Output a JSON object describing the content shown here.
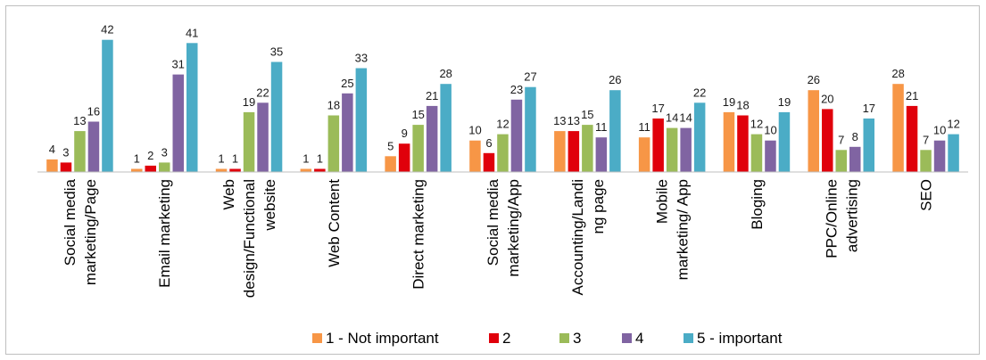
{
  "chart_data": {
    "type": "bar",
    "categories": [
      [
        "Social media",
        "marketing/Page"
      ],
      [
        "Email marketing"
      ],
      [
        "Web",
        "design/Functional",
        "website"
      ],
      [
        "Web Content"
      ],
      [
        "Direct marketing"
      ],
      [
        "Social media",
        "marketing/App"
      ],
      [
        "Accounting/Landi",
        "ng page"
      ],
      [
        "Mobile",
        "marketing/ App"
      ],
      [
        "Bloging"
      ],
      [
        "PPC/Online",
        "advertising"
      ],
      [
        "SEO"
      ]
    ],
    "series": [
      {
        "name": "1 - Not important",
        "color": "#f79646",
        "values": [
          4,
          1,
          1,
          1,
          5,
          10,
          13,
          11,
          19,
          26,
          28
        ]
      },
      {
        "name": "2",
        "color": "#e0000b",
        "values": [
          3,
          2,
          1,
          1,
          9,
          6,
          13,
          17,
          18,
          20,
          21
        ]
      },
      {
        "name": "3",
        "color": "#9bbb59",
        "values": [
          13,
          3,
          19,
          18,
          15,
          12,
          15,
          14,
          12,
          7,
          7
        ]
      },
      {
        "name": "4",
        "color": "#8064a2",
        "values": [
          16,
          31,
          22,
          25,
          21,
          23,
          11,
          14,
          10,
          8,
          10
        ]
      },
      {
        "name": "5 -  important",
        "color": "#4bacc6",
        "values": [
          42,
          41,
          35,
          33,
          28,
          27,
          26,
          22,
          19,
          17,
          12
        ]
      }
    ],
    "ylim": [
      0,
      44
    ],
    "grid": false,
    "legend": "bottom",
    "data_labels": true
  }
}
